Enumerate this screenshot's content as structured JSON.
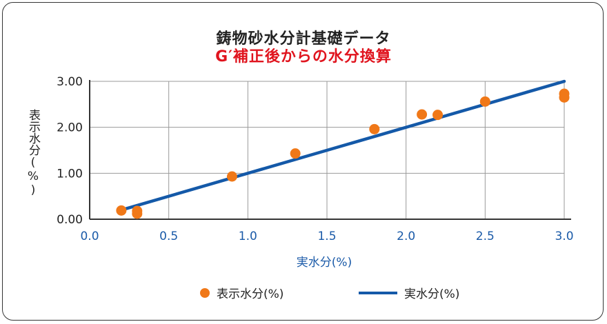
{
  "colors": {
    "points": "#f07818",
    "line": "#1459a8",
    "x_tick": "#1a5aa8",
    "title_sub": "#e0141e"
  },
  "legend": {
    "points_label": "表示水分(%)",
    "line_label": "実水分(%)"
  },
  "chart_data": {
    "type": "scatter",
    "title": "鋳物砂水分計基礎データ",
    "subtitle": "G′補正後からの水分換算",
    "xlabel": "実水分(%)",
    "ylabel": "表示水分(%)",
    "xlim": [
      0.0,
      3.0
    ],
    "ylim": [
      0.0,
      3.0
    ],
    "x_ticks": [
      "0.0",
      "0.5",
      "1.0",
      "1.5",
      "2.0",
      "2.5",
      "3.0"
    ],
    "y_ticks": [
      "0.00",
      "1.00",
      "2.00",
      "3.00"
    ],
    "grid": true,
    "legend_position": "bottom",
    "series": [
      {
        "name": "表示水分(%)",
        "type": "scatter",
        "points": [
          {
            "x": 0.2,
            "y": 0.19
          },
          {
            "x": 0.3,
            "y": 0.18
          },
          {
            "x": 0.3,
            "y": 0.12
          },
          {
            "x": 0.9,
            "y": 0.93
          },
          {
            "x": 1.3,
            "y": 1.43
          },
          {
            "x": 1.8,
            "y": 1.96
          },
          {
            "x": 2.1,
            "y": 2.28
          },
          {
            "x": 2.2,
            "y": 2.27
          },
          {
            "x": 2.5,
            "y": 2.56
          },
          {
            "x": 3.0,
            "y": 2.73
          },
          {
            "x": 3.0,
            "y": 2.65
          }
        ]
      },
      {
        "name": "実水分(%)",
        "type": "line",
        "points": [
          {
            "x": 0.2,
            "y": 0.2
          },
          {
            "x": 3.0,
            "y": 3.0
          }
        ]
      }
    ]
  }
}
